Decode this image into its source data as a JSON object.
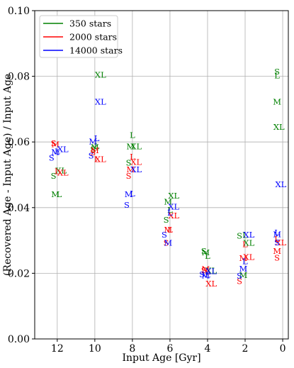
{
  "chart_data": {
    "type": "scatter",
    "xlabel": "Input Age [Gyr]",
    "ylabel": "(Recovered Age - Input Age) / Input Age",
    "xlim": [
      13.2,
      -0.3
    ],
    "ylim": [
      0.0,
      0.1
    ],
    "x_ticks": [
      12,
      10,
      8,
      6,
      4,
      2,
      0
    ],
    "x_tick_labels": [
      "12",
      "10",
      "8",
      "6",
      "4",
      "2",
      "0"
    ],
    "y_ticks": [
      0.0,
      0.02,
      0.04,
      0.06,
      0.08,
      0.1
    ],
    "y_tick_labels": [
      "0.00",
      "0.02",
      "0.04",
      "0.06",
      "0.08",
      "0.10"
    ],
    "grid": true,
    "legend_position": "top-left",
    "series": [
      {
        "name": "350 stars",
        "color": "#008000",
        "points": [
          {
            "x": 12.2,
            "y": 0.0497,
            "label": "S"
          },
          {
            "x": 12.1,
            "y": 0.0441,
            "label": "M"
          },
          {
            "x": 11.9,
            "y": 0.0441,
            "label": "L"
          },
          {
            "x": 11.8,
            "y": 0.0513,
            "label": "XL"
          },
          {
            "x": 10.1,
            "y": 0.0578,
            "label": "S"
          },
          {
            "x": 10.0,
            "y": 0.0584,
            "label": "M"
          },
          {
            "x": 9.9,
            "y": 0.0588,
            "label": "L"
          },
          {
            "x": 9.7,
            "y": 0.0804,
            "label": "XL"
          },
          {
            "x": 8.2,
            "y": 0.0537,
            "label": "S"
          },
          {
            "x": 8.1,
            "y": 0.0586,
            "label": "M"
          },
          {
            "x": 8.0,
            "y": 0.0621,
            "label": "L"
          },
          {
            "x": 7.8,
            "y": 0.0586,
            "label": "XL"
          },
          {
            "x": 6.2,
            "y": 0.0363,
            "label": "S"
          },
          {
            "x": 6.1,
            "y": 0.0418,
            "label": "M"
          },
          {
            "x": 6.0,
            "y": 0.0393,
            "label": "L"
          },
          {
            "x": 5.8,
            "y": 0.0436,
            "label": "XL"
          },
          {
            "x": 4.2,
            "y": 0.0268,
            "label": "S"
          },
          {
            "x": 4.1,
            "y": 0.0263,
            "label": "M"
          },
          {
            "x": 4.0,
            "y": 0.0253,
            "label": "L"
          },
          {
            "x": 3.8,
            "y": 0.0208,
            "label": "XL"
          },
          {
            "x": 2.3,
            "y": 0.0314,
            "label": "S"
          },
          {
            "x": 2.1,
            "y": 0.0194,
            "label": "M"
          },
          {
            "x": 2.0,
            "y": 0.0316,
            "label": "L"
          },
          {
            "x": 1.8,
            "y": 0.0293,
            "label": "XL"
          },
          {
            "x": 0.3,
            "y": 0.0814,
            "label": "S"
          },
          {
            "x": 0.3,
            "y": 0.0723,
            "label": "M"
          },
          {
            "x": 0.3,
            "y": 0.0802,
            "label": "L"
          },
          {
            "x": 0.2,
            "y": 0.0646,
            "label": "XL"
          }
        ]
      },
      {
        "name": "2000 stars",
        "color": "#ff0000",
        "points": [
          {
            "x": 12.2,
            "y": 0.0596,
            "label": "S"
          },
          {
            "x": 12.1,
            "y": 0.0593,
            "label": "M"
          },
          {
            "x": 12.0,
            "y": 0.0511,
            "label": "L"
          },
          {
            "x": 11.7,
            "y": 0.0507,
            "label": "XL"
          },
          {
            "x": 10.1,
            "y": 0.0568,
            "label": "S"
          },
          {
            "x": 10.0,
            "y": 0.0574,
            "label": "M"
          },
          {
            "x": 9.9,
            "y": 0.0547,
            "label": "L"
          },
          {
            "x": 9.7,
            "y": 0.0547,
            "label": "XL"
          },
          {
            "x": 8.2,
            "y": 0.0497,
            "label": "S"
          },
          {
            "x": 8.1,
            "y": 0.0516,
            "label": "M"
          },
          {
            "x": 8.0,
            "y": 0.0555,
            "label": "L"
          },
          {
            "x": 7.8,
            "y": 0.0539,
            "label": "XL"
          },
          {
            "x": 6.2,
            "y": 0.0293,
            "label": "S"
          },
          {
            "x": 6.1,
            "y": 0.0333,
            "label": "M"
          },
          {
            "x": 6.0,
            "y": 0.0333,
            "label": "L"
          },
          {
            "x": 5.8,
            "y": 0.0376,
            "label": "XL"
          },
          {
            "x": 4.2,
            "y": 0.0209,
            "label": "S"
          },
          {
            "x": 4.1,
            "y": 0.0213,
            "label": "M"
          },
          {
            "x": 4.0,
            "y": 0.0205,
            "label": "L"
          },
          {
            "x": 3.8,
            "y": 0.0168,
            "label": "XL"
          },
          {
            "x": 2.3,
            "y": 0.0176,
            "label": "S"
          },
          {
            "x": 2.1,
            "y": 0.0246,
            "label": "M"
          },
          {
            "x": 2.0,
            "y": 0.0288,
            "label": "L"
          },
          {
            "x": 1.8,
            "y": 0.025,
            "label": "XL"
          },
          {
            "x": 0.3,
            "y": 0.0247,
            "label": "S"
          },
          {
            "x": 0.3,
            "y": 0.0268,
            "label": "M"
          },
          {
            "x": 0.3,
            "y": 0.0304,
            "label": "L"
          },
          {
            "x": 0.1,
            "y": 0.0294,
            "label": "XL"
          }
        ]
      },
      {
        "name": "14000 stars",
        "color": "#0000ff",
        "points": [
          {
            "x": 12.3,
            "y": 0.0552,
            "label": "S"
          },
          {
            "x": 12.1,
            "y": 0.0569,
            "label": "M"
          },
          {
            "x": 12.0,
            "y": 0.0571,
            "label": "L"
          },
          {
            "x": 11.7,
            "y": 0.0578,
            "label": "XL"
          },
          {
            "x": 10.2,
            "y": 0.0558,
            "label": "S"
          },
          {
            "x": 10.1,
            "y": 0.0601,
            "label": "M"
          },
          {
            "x": 9.9,
            "y": 0.0611,
            "label": "L"
          },
          {
            "x": 9.7,
            "y": 0.0722,
            "label": "XL"
          },
          {
            "x": 8.3,
            "y": 0.0408,
            "label": "S"
          },
          {
            "x": 8.2,
            "y": 0.0441,
            "label": "M"
          },
          {
            "x": 8.0,
            "y": 0.0443,
            "label": "L"
          },
          {
            "x": 7.8,
            "y": 0.0516,
            "label": "XL"
          },
          {
            "x": 6.3,
            "y": 0.0317,
            "label": "S"
          },
          {
            "x": 6.1,
            "y": 0.0293,
            "label": "M"
          },
          {
            "x": 6.0,
            "y": 0.0384,
            "label": "L"
          },
          {
            "x": 5.8,
            "y": 0.0403,
            "label": "XL"
          },
          {
            "x": 4.3,
            "y": 0.0197,
            "label": "S"
          },
          {
            "x": 4.1,
            "y": 0.0193,
            "label": "M"
          },
          {
            "x": 4.0,
            "y": 0.0196,
            "label": "L"
          },
          {
            "x": 3.8,
            "y": 0.0206,
            "label": "XL"
          },
          {
            "x": 2.3,
            "y": 0.0192,
            "label": "S"
          },
          {
            "x": 2.1,
            "y": 0.0214,
            "label": "M"
          },
          {
            "x": 2.0,
            "y": 0.0236,
            "label": "L"
          },
          {
            "x": 1.8,
            "y": 0.0317,
            "label": "XL"
          },
          {
            "x": 0.3,
            "y": 0.0294,
            "label": "S"
          },
          {
            "x": 0.3,
            "y": 0.0319,
            "label": "M"
          },
          {
            "x": 0.3,
            "y": 0.0324,
            "label": "L"
          },
          {
            "x": 0.1,
            "y": 0.0471,
            "label": "XL"
          }
        ]
      }
    ]
  }
}
